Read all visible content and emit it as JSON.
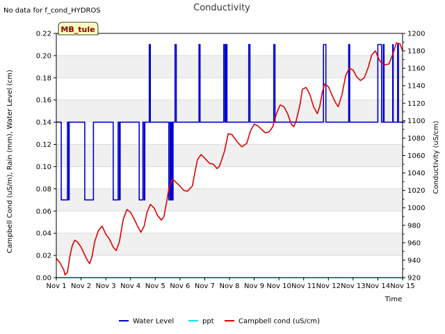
{
  "chart_data": {
    "type": "line",
    "title": "Conductivity",
    "note": "No data for f_cond_HYDROS",
    "badge": "MB_tule",
    "xlabel": "Time",
    "ylabel_left": "Campbell Cond (uS/m), Rain (mm), Water Level (cm)",
    "ylabel_right": "Conductivity (uS/cm)",
    "xlim": [
      1,
      15
    ],
    "ylim_left": [
      0,
      0.22
    ],
    "ylim_right": [
      920,
      1200
    ],
    "x_ticks": [
      {
        "v": 1,
        "label": "Nov 1"
      },
      {
        "v": 2,
        "label": "Nov 2"
      },
      {
        "v": 3,
        "label": "Nov 3"
      },
      {
        "v": 4,
        "label": "Nov 4"
      },
      {
        "v": 5,
        "label": "Nov 5"
      },
      {
        "v": 6,
        "label": "Nov 6"
      },
      {
        "v": 7,
        "label": "Nov 7"
      },
      {
        "v": 8,
        "label": "Nov 8"
      },
      {
        "v": 9,
        "label": "Nov 9"
      },
      {
        "v": 10,
        "label": "Nov 10"
      },
      {
        "v": 11,
        "label": "Nov 11"
      },
      {
        "v": 12,
        "label": "Nov 12"
      },
      {
        "v": 13,
        "label": "Nov 13"
      },
      {
        "v": 14,
        "label": "Nov 14"
      },
      {
        "v": 15,
        "label": "Nov 15"
      }
    ],
    "y_ticks_left": [
      "0.00",
      "0.02",
      "0.04",
      "0.06",
      "0.08",
      "0.10",
      "0.12",
      "0.14",
      "0.16",
      "0.18",
      "0.20",
      "0.22"
    ],
    "y_ticks_right": [
      "920",
      "940",
      "960",
      "980",
      "1000",
      "1020",
      "1040",
      "1060",
      "1080",
      "1100",
      "1120",
      "1140",
      "1160",
      "1180",
      "1200"
    ],
    "grid": "horizontal bands",
    "legend_position": "bottom",
    "series": [
      {
        "name": "Water Level",
        "color": "#0000cc",
        "axis": "left",
        "step": true,
        "points": [
          [
            1.0,
            0.14
          ],
          [
            1.2,
            0.14
          ],
          [
            1.2,
            0.07
          ],
          [
            1.45,
            0.07
          ],
          [
            1.45,
            0.14
          ],
          [
            1.5,
            0.14
          ],
          [
            1.5,
            0.07
          ],
          [
            1.52,
            0.07
          ],
          [
            1.52,
            0.14
          ],
          [
            2.15,
            0.14
          ],
          [
            2.15,
            0.07
          ],
          [
            2.5,
            0.07
          ],
          [
            2.5,
            0.14
          ],
          [
            3.3,
            0.14
          ],
          [
            3.3,
            0.07
          ],
          [
            3.5,
            0.07
          ],
          [
            3.5,
            0.14
          ],
          [
            3.55,
            0.14
          ],
          [
            3.55,
            0.07
          ],
          [
            3.58,
            0.07
          ],
          [
            3.58,
            0.14
          ],
          [
            4.35,
            0.14
          ],
          [
            4.35,
            0.07
          ],
          [
            4.5,
            0.07
          ],
          [
            4.5,
            0.14
          ],
          [
            4.55,
            0.14
          ],
          [
            4.55,
            0.07
          ],
          [
            4.58,
            0.07
          ],
          [
            4.58,
            0.14
          ],
          [
            4.76,
            0.14
          ],
          [
            4.76,
            0.21
          ],
          [
            4.8,
            0.21
          ],
          [
            4.8,
            0.14
          ],
          [
            5.55,
            0.14
          ],
          [
            5.55,
            0.07
          ],
          [
            5.6,
            0.07
          ],
          [
            5.6,
            0.14
          ],
          [
            5.62,
            0.14
          ],
          [
            5.62,
            0.07
          ],
          [
            5.65,
            0.07
          ],
          [
            5.65,
            0.14
          ],
          [
            5.68,
            0.14
          ],
          [
            5.68,
            0.07
          ],
          [
            5.72,
            0.07
          ],
          [
            5.72,
            0.14
          ],
          [
            5.8,
            0.14
          ],
          [
            5.8,
            0.21
          ],
          [
            5.85,
            0.21
          ],
          [
            5.85,
            0.14
          ],
          [
            6.77,
            0.14
          ],
          [
            6.77,
            0.21
          ],
          [
            6.81,
            0.21
          ],
          [
            6.81,
            0.14
          ],
          [
            7.77,
            0.14
          ],
          [
            7.77,
            0.21
          ],
          [
            7.82,
            0.21
          ],
          [
            7.82,
            0.14
          ],
          [
            7.86,
            0.14
          ],
          [
            7.86,
            0.21
          ],
          [
            7.9,
            0.21
          ],
          [
            7.9,
            0.14
          ],
          [
            8.78,
            0.14
          ],
          [
            8.78,
            0.21
          ],
          [
            8.83,
            0.21
          ],
          [
            8.83,
            0.14
          ],
          [
            9.79,
            0.14
          ],
          [
            9.79,
            0.21
          ],
          [
            9.84,
            0.21
          ],
          [
            9.84,
            0.14
          ],
          [
            11.8,
            0.14
          ],
          [
            11.8,
            0.21
          ],
          [
            11.9,
            0.21
          ],
          [
            11.9,
            0.14
          ],
          [
            12.82,
            0.14
          ],
          [
            12.82,
            0.21
          ],
          [
            12.86,
            0.21
          ],
          [
            12.86,
            0.14
          ],
          [
            14.0,
            0.14
          ],
          [
            14.0,
            0.21
          ],
          [
            14.15,
            0.21
          ],
          [
            14.15,
            0.14
          ],
          [
            14.22,
            0.14
          ],
          [
            14.22,
            0.21
          ],
          [
            14.25,
            0.21
          ],
          [
            14.25,
            0.14
          ],
          [
            14.6,
            0.14
          ],
          [
            14.6,
            0.21
          ],
          [
            14.62,
            0.21
          ],
          [
            14.62,
            0.14
          ],
          [
            14.8,
            0.14
          ],
          [
            14.8,
            0.21
          ],
          [
            14.83,
            0.21
          ],
          [
            14.83,
            0.14
          ],
          [
            15.1,
            0.14
          ]
        ]
      },
      {
        "name": "ppt",
        "color": "#00e5ee",
        "axis": "left",
        "step": false,
        "points": [
          [
            1.0,
            0.0
          ],
          [
            15.1,
            0.0
          ]
        ]
      },
      {
        "name": "Campbell cond (uS/cm)",
        "color": "#dd0000",
        "axis": "right",
        "step": false,
        "points": [
          [
            1.0,
            942
          ],
          [
            1.15,
            937
          ],
          [
            1.3,
            929
          ],
          [
            1.35,
            923
          ],
          [
            1.45,
            926
          ],
          [
            1.55,
            945
          ],
          [
            1.65,
            957
          ],
          [
            1.75,
            963
          ],
          [
            1.85,
            961
          ],
          [
            2.0,
            955
          ],
          [
            2.15,
            946
          ],
          [
            2.25,
            940
          ],
          [
            2.35,
            936
          ],
          [
            2.45,
            945
          ],
          [
            2.55,
            961
          ],
          [
            2.7,
            974
          ],
          [
            2.85,
            979
          ],
          [
            3.0,
            970
          ],
          [
            3.15,
            964
          ],
          [
            3.3,
            955
          ],
          [
            3.42,
            951
          ],
          [
            3.55,
            961
          ],
          [
            3.7,
            986
          ],
          [
            3.85,
            998
          ],
          [
            4.0,
            995
          ],
          [
            4.15,
            987
          ],
          [
            4.3,
            978
          ],
          [
            4.42,
            972
          ],
          [
            4.55,
            979
          ],
          [
            4.67,
            995
          ],
          [
            4.8,
            1004
          ],
          [
            4.95,
            1000
          ],
          [
            5.1,
            991
          ],
          [
            5.25,
            986
          ],
          [
            5.35,
            990
          ],
          [
            5.45,
            1005
          ],
          [
            5.55,
            1022
          ],
          [
            5.7,
            1033
          ],
          [
            5.85,
            1029
          ],
          [
            6.0,
            1025
          ],
          [
            6.15,
            1020
          ],
          [
            6.3,
            1019
          ],
          [
            6.5,
            1025
          ],
          [
            6.6,
            1040
          ],
          [
            6.7,
            1055
          ],
          [
            6.85,
            1061
          ],
          [
            7.0,
            1057
          ],
          [
            7.2,
            1051
          ],
          [
            7.35,
            1050
          ],
          [
            7.5,
            1045
          ],
          [
            7.6,
            1048
          ],
          [
            7.8,
            1065
          ],
          [
            7.95,
            1085
          ],
          [
            8.1,
            1084
          ],
          [
            8.3,
            1076
          ],
          [
            8.5,
            1070
          ],
          [
            8.7,
            1074
          ],
          [
            8.85,
            1088
          ],
          [
            9.0,
            1096
          ],
          [
            9.15,
            1094
          ],
          [
            9.3,
            1090
          ],
          [
            9.45,
            1086
          ],
          [
            9.6,
            1087
          ],
          [
            9.75,
            1093
          ],
          [
            9.9,
            1108
          ],
          [
            10.05,
            1118
          ],
          [
            10.2,
            1116
          ],
          [
            10.35,
            1108
          ],
          [
            10.5,
            1096
          ],
          [
            10.6,
            1093
          ],
          [
            10.7,
            1100
          ],
          [
            10.85,
            1118
          ],
          [
            10.95,
            1136
          ],
          [
            11.1,
            1138
          ],
          [
            11.25,
            1130
          ],
          [
            11.4,
            1116
          ],
          [
            11.55,
            1108
          ],
          [
            11.65,
            1116
          ],
          [
            11.75,
            1132
          ],
          [
            11.85,
            1142
          ],
          [
            12.0,
            1139
          ],
          [
            12.15,
            1129
          ],
          [
            12.3,
            1120
          ],
          [
            12.4,
            1116
          ],
          [
            12.55,
            1130
          ],
          [
            12.7,
            1152
          ],
          [
            12.85,
            1160
          ],
          [
            13.0,
            1158
          ],
          [
            13.15,
            1150
          ],
          [
            13.3,
            1146
          ],
          [
            13.45,
            1149
          ],
          [
            13.6,
            1160
          ],
          [
            13.75,
            1175
          ],
          [
            13.9,
            1180
          ],
          [
            14.05,
            1170
          ],
          [
            14.15,
            1166
          ],
          [
            14.3,
            1164
          ],
          [
            14.45,
            1165
          ],
          [
            14.6,
            1176
          ],
          [
            14.75,
            1189
          ],
          [
            14.9,
            1188
          ],
          [
            15.0,
            1180
          ]
        ]
      }
    ]
  }
}
